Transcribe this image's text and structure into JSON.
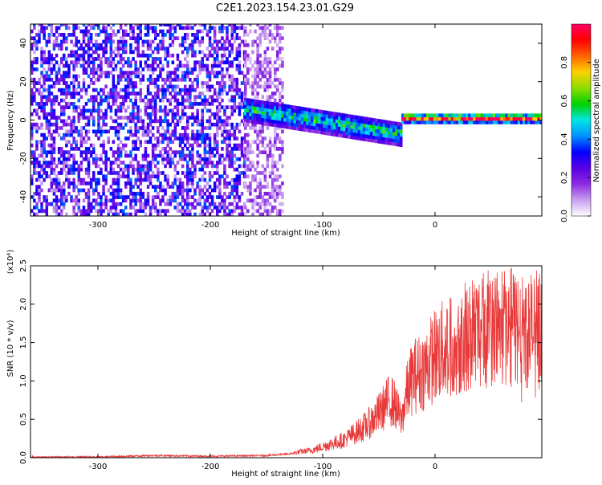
{
  "title": "C2E1.2023.154.23.01.G29",
  "chart_data": [
    {
      "type": "heatmap",
      "xlabel": "Height of straight line (km)",
      "ylabel": "Frequency (Hz)",
      "xlim": [
        -360,
        95
      ],
      "ylim": [
        -50,
        50
      ],
      "x_ticks": [
        -300,
        -200,
        -100,
        0
      ],
      "x_tick_labels": [
        "-300",
        "-200",
        "-100",
        "0"
      ],
      "y_ticks": [
        -40,
        -20,
        0,
        20,
        40
      ],
      "y_tick_labels": [
        "-40",
        "-20",
        "0",
        "20",
        "40"
      ],
      "colorbar": {
        "label": "Normalized spectral amplitude",
        "range": [
          0.0,
          1.0
        ],
        "ticks": [
          0.0,
          0.2,
          0.4,
          0.6,
          0.8
        ],
        "tick_labels": [
          "0.0",
          "0.2",
          "0.4",
          "0.6",
          "0.8"
        ],
        "colormap": "rainbow",
        "stops": [
          "#ffffff",
          "#c8a0f0",
          "#8c2ae0",
          "#5a00e6",
          "#0000ff",
          "#0090ff",
          "#00e6e6",
          "#00d200",
          "#8cdc00",
          "#ffd200",
          "#ff6400",
          "#ff0000",
          "#ff0064"
        ]
      },
      "regions": [
        {
          "x_range": [
            -360,
            -170
          ],
          "freq_range": [
            -50,
            50
          ],
          "amplitude": 0.25,
          "description": "broadband scattered purple noise"
        },
        {
          "x_range": [
            -170,
            -135
          ],
          "freq_range": [
            -50,
            50
          ],
          "amplitude": 0.12,
          "description": "sparse light purple noise"
        },
        {
          "x_range": [
            -170,
            -30
          ],
          "freq_center": [
            5,
            -8
          ],
          "freq_halfwidth": 6,
          "amplitude": 0.45,
          "description": "signal trace, blue to cyan"
        },
        {
          "x_range": [
            -30,
            95
          ],
          "freq_center": [
            0,
            0
          ],
          "freq_halfwidth": 2,
          "amplitude": 0.85,
          "description": "narrow strong signal near 0 Hz, red"
        }
      ],
      "grid": false
    },
    {
      "type": "line",
      "xlabel": "Height of straight line (km)",
      "ylabel": "SNR (10 * v/v)",
      "y_scale_label": "(x10⁴)",
      "xlim": [
        -360,
        95
      ],
      "ylim": [
        0,
        2.5
      ],
      "x_ticks": [
        -300,
        -200,
        -100,
        0
      ],
      "x_tick_labels": [
        "-300",
        "-200",
        "-100",
        "0"
      ],
      "y_ticks": [
        0,
        0.5,
        1.0,
        1.5,
        2.0,
        2.5
      ],
      "y_tick_labels": [
        "0.0",
        "0.5",
        "1.0",
        "1.5",
        "2.0",
        "2.5"
      ],
      "color": "#e83a3a",
      "series": [
        {
          "x": [
            -360,
            -300,
            -250,
            -200,
            -150,
            -130,
            -120,
            -110,
            -100,
            -90,
            -80,
            -70,
            -60,
            -50,
            -45,
            -40,
            -35,
            -30,
            -25,
            -20,
            -15,
            -10,
            -5,
            0,
            5,
            10,
            15,
            20,
            25,
            30,
            40,
            50,
            60,
            65,
            70,
            80,
            90,
            95
          ],
          "values": [
            0.01,
            0.01,
            0.03,
            0.02,
            0.03,
            0.05,
            0.08,
            0.1,
            0.15,
            0.2,
            0.25,
            0.35,
            0.45,
            0.6,
            0.7,
            0.8,
            0.7,
            0.5,
            0.9,
            1.1,
            1.15,
            1.2,
            1.3,
            1.4,
            1.45,
            1.5,
            1.55,
            1.6,
            1.65,
            1.7,
            1.75,
            1.78,
            1.8,
            1.75,
            1.8,
            1.72,
            1.75,
            1.7
          ]
        }
      ],
      "grid": false
    }
  ]
}
